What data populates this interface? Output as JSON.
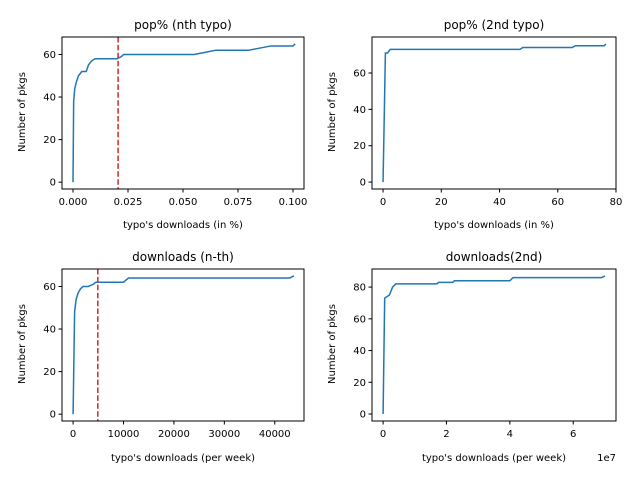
{
  "colors": {
    "series": "#1f77b4",
    "reference": "#d62728"
  },
  "chart_data": [
    {
      "type": "line",
      "title": "pop% (nth typo)",
      "xlabel": "typo's downloads (in %)",
      "ylabel": "Number of pkgs",
      "xlim": [
        -0.005,
        0.105
      ],
      "ylim": [
        -3.2,
        68.2
      ],
      "xticks": [
        0.0,
        0.025,
        0.05,
        0.075,
        0.1
      ],
      "xtick_labels": [
        "0.000",
        "0.025",
        "0.050",
        "0.075",
        "0.100"
      ],
      "yticks": [
        0,
        20,
        40,
        60
      ],
      "ytick_labels": [
        "0",
        "20",
        "40",
        "60"
      ],
      "grid": false,
      "series": [
        {
          "x": [
            0.0,
            0.0003,
            0.0008,
            0.0015,
            0.0025,
            0.004,
            0.006,
            0.007,
            0.0085,
            0.01,
            0.012,
            0.02,
            0.022,
            0.023,
            0.04,
            0.055,
            0.06,
            0.065,
            0.08,
            0.085,
            0.09,
            0.1,
            0.101
          ],
          "y": [
            0,
            38,
            44,
            47,
            50,
            52,
            52,
            55,
            57,
            58,
            58,
            58,
            59,
            60,
            60,
            60,
            61,
            62,
            62,
            63,
            64,
            64,
            65
          ]
        }
      ],
      "reference_x": 0.0205
    },
    {
      "type": "line",
      "title": "pop% (2nd typo)",
      "xlabel": "typo's downloads (in %)",
      "ylabel": "Number of pkgs",
      "xlim": [
        -3.8,
        80
      ],
      "ylim": [
        -3.8,
        79.8
      ],
      "xticks": [
        0,
        20,
        40,
        60,
        80
      ],
      "xtick_labels": [
        "0",
        "20",
        "40",
        "60",
        "80"
      ],
      "yticks": [
        0,
        20,
        40,
        60
      ],
      "ytick_labels": [
        "0",
        "20",
        "40",
        "60"
      ],
      "grid": false,
      "series": [
        {
          "x": [
            0,
            0.8,
            1.5,
            2.5,
            3.5,
            47,
            48,
            65,
            66,
            76,
            76.5
          ],
          "y": [
            0,
            71,
            71,
            73,
            73,
            73,
            74,
            74,
            75,
            75,
            76
          ]
        }
      ]
    },
    {
      "type": "line",
      "title": "downloads (n-th)",
      "xlabel": "typo's downloads (per week)",
      "ylabel": "Number of pkgs",
      "xlim": [
        -2200,
        45800
      ],
      "ylim": [
        -3.2,
        68.2
      ],
      "xticks": [
        0,
        10000,
        20000,
        30000,
        40000
      ],
      "xtick_labels": [
        "0",
        "10000",
        "20000",
        "30000",
        "40000"
      ],
      "yticks": [
        0,
        20,
        40,
        60
      ],
      "ytick_labels": [
        "0",
        "20",
        "40",
        "60"
      ],
      "grid": false,
      "series": [
        {
          "x": [
            0,
            300,
            600,
            1000,
            1500,
            2000,
            3000,
            4000,
            4500,
            5000,
            10000,
            11000,
            43000,
            43800
          ],
          "y": [
            0,
            48,
            54,
            57,
            59,
            60,
            60,
            61,
            62,
            62,
            62,
            64,
            64,
            65
          ]
        }
      ],
      "reference_x": 4900
    },
    {
      "type": "line",
      "title": "downloads(2nd)",
      "xlabel": "typo's downloads (per week)",
      "ylabel": "Number of pkgs",
      "x_offset_text": "1e7",
      "xlim": [
        -0.35,
        7.35
      ],
      "ylim": [
        -4.4,
        91.4
      ],
      "xticks": [
        0,
        2,
        4,
        6
      ],
      "xtick_labels": [
        "0",
        "2",
        "4",
        "6"
      ],
      "yticks": [
        0,
        20,
        40,
        60,
        80
      ],
      "ytick_labels": [
        "0",
        "20",
        "40",
        "60",
        "80"
      ],
      "grid": false,
      "series": [
        {
          "x": [
            0,
            0.05,
            0.12,
            0.2,
            0.3,
            0.4,
            1.7,
            1.75,
            2.2,
            2.25,
            4.0,
            4.1,
            6.9,
            7.0
          ],
          "y": [
            0,
            73,
            74,
            75,
            80,
            82,
            82,
            83,
            83,
            84,
            84,
            86,
            86,
            87
          ]
        }
      ]
    }
  ]
}
